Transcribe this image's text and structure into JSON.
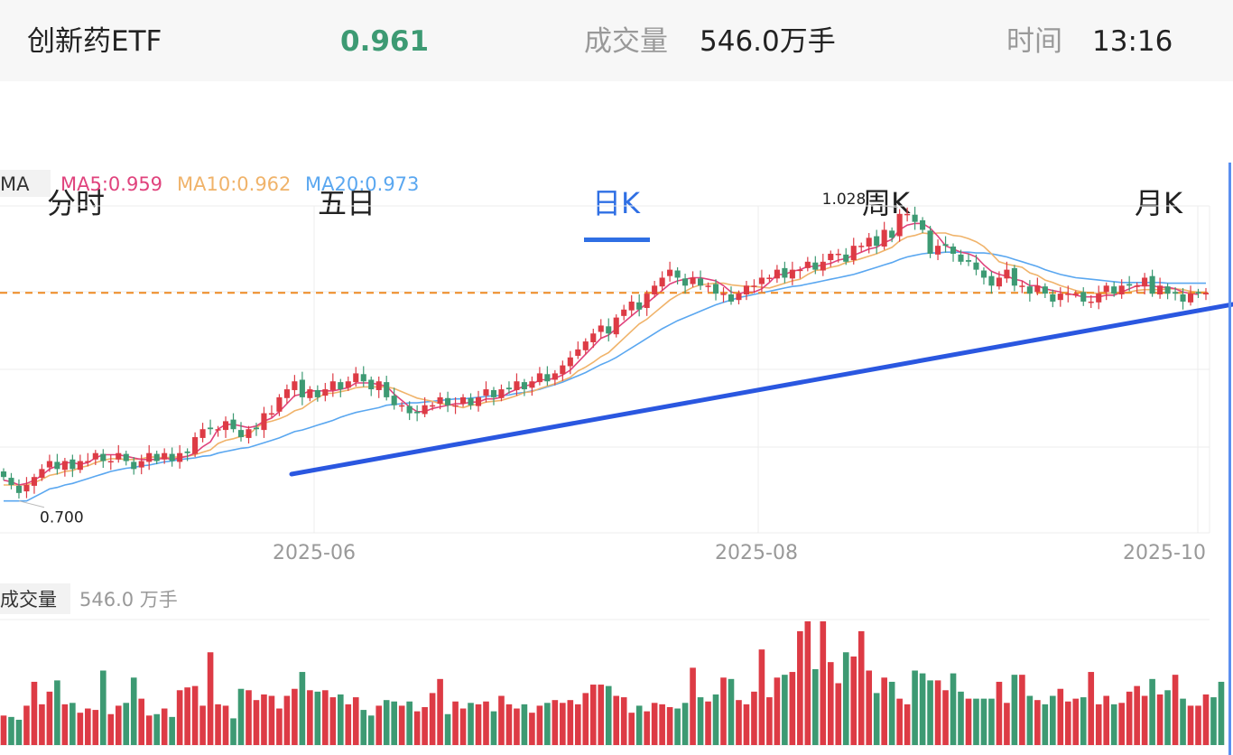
{
  "header": {
    "name": "创新药ETF",
    "price": "0.961",
    "volume_label": "成交量",
    "volume_value": "546.0万手",
    "time_label": "时间",
    "time_value": "13:16"
  },
  "tabs": [
    {
      "label": "分时",
      "active": false
    },
    {
      "label": "五日",
      "active": false
    },
    {
      "label": "日K",
      "active": true
    },
    {
      "label": "周K",
      "active": false
    },
    {
      "label": "月K",
      "active": false
    }
  ],
  "colors": {
    "up": "#dd3b45",
    "down": "#3d9a73",
    "ma5": "#e0437d",
    "ma10": "#f0b36a",
    "ma20": "#5aa7f0",
    "trendline": "#2a57e0",
    "ref_line": "#ef8b25",
    "active_tab": "#2f6fe4"
  },
  "chart_data": {
    "type": "candlestick",
    "indicator_label": "MA",
    "ma_legend": [
      {
        "label": "MA5:0.959",
        "color": "#e0437d"
      },
      {
        "label": "MA10:0.962",
        "color": "#f0b36a"
      },
      {
        "label": "MA20:0.973",
        "color": "#5aa7f0"
      }
    ],
    "x_tick_labels": [
      "2025-06",
      "2025-08",
      "2025-10"
    ],
    "annotations": {
      "high": "1.028",
      "low": "0.700"
    },
    "reference_price": 0.961,
    "y_range": [
      0.66,
      1.07
    ],
    "volume_label": "成交量",
    "volume_value": "546.0 万手",
    "closes": [
      0.73,
      0.72,
      0.71,
      0.72,
      0.73,
      0.74,
      0.75,
      0.74,
      0.75,
      0.74,
      0.75,
      0.75,
      0.76,
      0.75,
      0.75,
      0.76,
      0.75,
      0.74,
      0.75,
      0.76,
      0.75,
      0.76,
      0.75,
      0.76,
      0.76,
      0.78,
      0.79,
      0.79,
      0.79,
      0.8,
      0.79,
      0.78,
      0.79,
      0.79,
      0.81,
      0.81,
      0.83,
      0.84,
      0.85,
      0.83,
      0.84,
      0.83,
      0.84,
      0.85,
      0.84,
      0.85,
      0.86,
      0.85,
      0.84,
      0.85,
      0.83,
      0.82,
      0.82,
      0.81,
      0.81,
      0.82,
      0.82,
      0.83,
      0.82,
      0.82,
      0.83,
      0.82,
      0.83,
      0.84,
      0.83,
      0.84,
      0.84,
      0.85,
      0.84,
      0.85,
      0.86,
      0.85,
      0.86,
      0.87,
      0.88,
      0.89,
      0.9,
      0.91,
      0.92,
      0.91,
      0.93,
      0.94,
      0.95,
      0.94,
      0.96,
      0.97,
      0.98,
      0.99,
      0.98,
      0.97,
      0.98,
      0.97,
      0.97,
      0.96,
      0.96,
      0.95,
      0.96,
      0.97,
      0.97,
      0.98,
      0.98,
      0.99,
      0.98,
      0.99,
      0.99,
      1.0,
      0.99,
      1.0,
      1.01,
      1.01,
      1.0,
      1.02,
      1.02,
      1.03,
      1.02,
      1.04,
      1.03,
      1.06,
      1.06,
      1.05,
      1.04,
      1.01,
      1.02,
      1.02,
      1.01,
      1.0,
      1.0,
      0.99,
      0.98,
      0.97,
      0.98,
      0.99,
      0.97,
      0.97,
      0.96,
      0.97,
      0.96,
      0.95,
      0.96,
      0.96,
      0.96,
      0.95,
      0.95,
      0.96,
      0.97,
      0.96,
      0.97,
      0.97,
      0.97,
      0.98,
      0.96,
      0.97,
      0.96,
      0.96,
      0.95,
      0.96,
      0.96,
      0.961
    ],
    "ma5": [
      0.726,
      0.724,
      0.72,
      0.722,
      0.726,
      0.732,
      0.74,
      0.744,
      0.748,
      0.748,
      0.746,
      0.748,
      0.754,
      0.758,
      0.758,
      0.758,
      0.756,
      0.754,
      0.752,
      0.752,
      0.752,
      0.754,
      0.752,
      0.754,
      0.756,
      0.76,
      0.768,
      0.774,
      0.79,
      0.796,
      0.796,
      0.794,
      0.792,
      0.794,
      0.8,
      0.804,
      0.812,
      0.822,
      0.832,
      0.834,
      0.838,
      0.838,
      0.838,
      0.838,
      0.84,
      0.842,
      0.848,
      0.848,
      0.848,
      0.846,
      0.844,
      0.834,
      0.826,
      0.818,
      0.812,
      0.812,
      0.816,
      0.818,
      0.82,
      0.822,
      0.822,
      0.824,
      0.824,
      0.828,
      0.828,
      0.83,
      0.836,
      0.84,
      0.844,
      0.846,
      0.852,
      0.852,
      0.854,
      0.858,
      0.864,
      0.874,
      0.884,
      0.894,
      0.904,
      0.908,
      0.916,
      0.924,
      0.932,
      0.94,
      0.948,
      0.956,
      0.964,
      0.972,
      0.976,
      0.978,
      0.98,
      0.98,
      0.978,
      0.976,
      0.97,
      0.962,
      0.96,
      0.962,
      0.962,
      0.966,
      0.974,
      0.984,
      0.984,
      0.988,
      0.99,
      0.994,
      0.994,
      0.996,
      0.998,
      1.002,
      1.004,
      1.008,
      1.012,
      1.016,
      1.018,
      1.024,
      1.028,
      1.04,
      1.046,
      1.048,
      1.048,
      1.042,
      1.032,
      1.02,
      1.016,
      1.012,
      1.01,
      1.006,
      0.996,
      0.988,
      0.984,
      0.982,
      0.978,
      0.976,
      0.97,
      0.97,
      0.966,
      0.964,
      0.962,
      0.96,
      0.958,
      0.956,
      0.956,
      0.956,
      0.958,
      0.958,
      0.962,
      0.966,
      0.97,
      0.97,
      0.97,
      0.968,
      0.968,
      0.966,
      0.962,
      0.96,
      0.959
    ],
    "ma10": [
      0.72,
      0.72,
      0.72,
      0.72,
      0.723,
      0.727,
      0.732,
      0.734,
      0.737,
      0.738,
      0.742,
      0.744,
      0.748,
      0.751,
      0.753,
      0.753,
      0.752,
      0.752,
      0.753,
      0.755,
      0.755,
      0.754,
      0.755,
      0.755,
      0.756,
      0.758,
      0.761,
      0.764,
      0.772,
      0.776,
      0.778,
      0.781,
      0.783,
      0.792,
      0.798,
      0.8,
      0.803,
      0.807,
      0.813,
      0.816,
      0.823,
      0.829,
      0.835,
      0.835,
      0.837,
      0.839,
      0.842,
      0.843,
      0.843,
      0.843,
      0.843,
      0.841,
      0.837,
      0.833,
      0.829,
      0.827,
      0.825,
      0.822,
      0.821,
      0.819,
      0.817,
      0.82,
      0.821,
      0.824,
      0.825,
      0.826,
      0.829,
      0.832,
      0.836,
      0.837,
      0.841,
      0.844,
      0.847,
      0.851,
      0.855,
      0.863,
      0.868,
      0.874,
      0.881,
      0.886,
      0.895,
      0.904,
      0.913,
      0.922,
      0.928,
      0.936,
      0.944,
      0.952,
      0.958,
      0.963,
      0.968,
      0.971,
      0.972,
      0.973,
      0.973,
      0.971,
      0.97,
      0.969,
      0.969,
      0.968,
      0.967,
      0.97,
      0.973,
      0.976,
      0.978,
      0.984,
      0.989,
      0.99,
      0.993,
      0.995,
      0.999,
      1.001,
      1.004,
      1.007,
      1.01,
      1.014,
      1.018,
      1.026,
      1.031,
      1.033,
      1.036,
      1.035,
      1.036,
      1.036,
      1.033,
      1.032,
      1.029,
      1.025,
      1.019,
      1.01,
      1.0,
      0.997,
      0.995,
      0.993,
      0.986,
      0.983,
      0.977,
      0.974,
      0.97,
      0.967,
      0.964,
      0.962,
      0.961,
      0.96,
      0.96,
      0.961,
      0.961,
      0.962,
      0.964,
      0.965,
      0.965,
      0.965,
      0.966,
      0.966,
      0.965,
      0.963,
      0.962,
      0.962
    ],
    "ma20": [
      0.7,
      0.7,
      0.7,
      0.7,
      0.705,
      0.71,
      0.715,
      0.717,
      0.72,
      0.722,
      0.725,
      0.728,
      0.731,
      0.734,
      0.737,
      0.739,
      0.741,
      0.742,
      0.744,
      0.745,
      0.747,
      0.749,
      0.75,
      0.752,
      0.753,
      0.754,
      0.756,
      0.757,
      0.76,
      0.762,
      0.764,
      0.766,
      0.767,
      0.77,
      0.773,
      0.776,
      0.779,
      0.783,
      0.787,
      0.789,
      0.792,
      0.795,
      0.798,
      0.801,
      0.805,
      0.808,
      0.811,
      0.813,
      0.815,
      0.817,
      0.82,
      0.821,
      0.822,
      0.823,
      0.823,
      0.824,
      0.825,
      0.826,
      0.827,
      0.828,
      0.828,
      0.829,
      0.83,
      0.831,
      0.832,
      0.832,
      0.833,
      0.835,
      0.836,
      0.838,
      0.84,
      0.843,
      0.846,
      0.849,
      0.853,
      0.857,
      0.861,
      0.866,
      0.871,
      0.875,
      0.88,
      0.886,
      0.892,
      0.898,
      0.904,
      0.91,
      0.916,
      0.921,
      0.926,
      0.93,
      0.934,
      0.938,
      0.942,
      0.946,
      0.949,
      0.952,
      0.955,
      0.957,
      0.959,
      0.961,
      0.963,
      0.965,
      0.967,
      0.969,
      0.97,
      0.972,
      0.974,
      0.976,
      0.978,
      0.98,
      0.982,
      0.984,
      0.987,
      0.99,
      0.993,
      0.996,
      0.999,
      1.003,
      1.006,
      1.008,
      1.01,
      1.011,
      1.011,
      1.012,
      1.012,
      1.012,
      1.012,
      1.011,
      1.011,
      1.01,
      1.008,
      1.006,
      1.003,
      1.0,
      0.997,
      0.994,
      0.99,
      0.987,
      0.984,
      0.982,
      0.98,
      0.979,
      0.978,
      0.977,
      0.976,
      0.975,
      0.974,
      0.974,
      0.974,
      0.974,
      0.974,
      0.974,
      0.973,
      0.973,
      0.973,
      0.973,
      0.973,
      0.973
    ],
    "volumes": [
      2.1,
      2.0,
      1.8,
      2.8,
      4.5,
      2.9,
      3.8,
      4.6,
      2.9,
      3.0,
      2.3,
      2.6,
      2.5,
      5.3,
      2.2,
      2.8,
      3.0,
      4.8,
      3.3,
      2.1,
      2.2,
      2.6,
      2.0,
      3.9,
      4.1,
      4.2,
      2.8,
      6.6,
      2.9,
      2.8,
      1.9,
      4.0,
      3.9,
      3.2,
      3.6,
      3.5,
      2.6,
      3.5,
      4.0,
      5.2,
      3.9,
      3.8,
      3.9,
      3.4,
      3.6,
      2.9,
      3.4,
      2.5,
      2.1,
      2.8,
      3.2,
      3.1,
      2.8,
      3.1,
      2.4,
      2.7,
      3.7,
      4.7,
      2.2,
      3.1,
      2.6,
      3.0,
      2.9,
      3.1,
      2.4,
      3.5,
      2.9,
      2.6,
      2.9,
      2.3,
      2.8,
      3.0,
      3.2,
      3.0,
      3.2,
      2.9,
      3.7,
      4.3,
      4.3,
      4.2,
      3.5,
      3.4,
      2.3,
      2.8,
      2.4,
      3.0,
      2.9,
      2.7,
      2.6,
      3.0,
      5.5,
      3.4,
      3.1,
      3.6,
      4.8,
      4.7,
      3.2,
      2.9,
      3.8,
      6.8,
      3.4,
      4.8,
      5.0,
      5.2,
      8.1,
      8.8,
      5.4,
      8.8,
      5.9,
      4.4,
      6.6,
      6.3,
      8.1,
      5.3,
      3.7,
      4.8,
      4.5,
      3.3,
      2.9,
      5.3,
      5.1,
      4.6,
      4.6,
      3.9,
      5.1,
      3.8,
      3.3,
      3.3,
      3.3,
      3.3,
      4.5,
      3.0,
      5.0,
      5.0,
      3.5,
      3.2,
      2.9,
      3.5,
      4.0,
      3.1,
      3.3,
      3.4,
      5.2,
      2.9,
      3.5,
      2.9,
      3.0,
      3.8,
      4.2,
      3.5,
      4.7,
      3.6,
      3.9,
      5.0,
      3.3,
      2.8,
      2.8,
      3.6,
      3.4,
      4.5
    ]
  }
}
